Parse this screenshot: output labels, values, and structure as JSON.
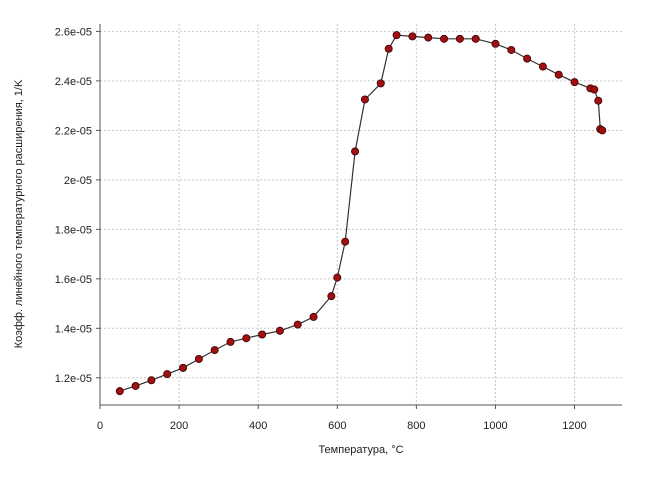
{
  "chart_data": {
    "type": "line",
    "xlabel": "Температура, °C",
    "ylabel": "Коэфф. линейного температурного расширения, 1/K",
    "xlim": [
      0,
      1320
    ],
    "ylim": [
      1.09e-05,
      2.63e-05
    ],
    "x_ticks": [
      0,
      200,
      400,
      600,
      800,
      1000,
      1200
    ],
    "x_tick_labels": [
      "0",
      "200",
      "400",
      "600",
      "800",
      "1000",
      "1200"
    ],
    "y_ticks": [
      1.2e-05,
      1.4e-05,
      1.6e-05,
      1.8e-05,
      2e-05,
      2.2e-05,
      2.4e-05,
      2.6e-05
    ],
    "y_tick_labels": [
      "1.2e-05",
      "1.4e-05",
      "1.6e-05",
      "1.8e-05",
      "2e-05",
      "2.2e-05",
      "2.4e-05",
      "2.6e-05"
    ],
    "grid": true,
    "colors": {
      "line": "#333333",
      "marker": "#a01010",
      "grid": "#c8c8c8"
    },
    "series": [
      {
        "x": [
          50,
          90,
          130,
          170,
          210,
          250,
          290,
          330,
          370,
          410,
          455,
          500,
          540,
          585,
          600,
          620,
          645,
          670,
          710,
          730,
          750,
          790,
          830,
          870,
          910,
          950,
          1000,
          1040,
          1080,
          1120,
          1160,
          1200,
          1240,
          1250,
          1260,
          1265,
          1270
        ],
        "y": [
          1.146e-05,
          1.167e-05,
          1.19e-05,
          1.215e-05,
          1.24e-05,
          1.276e-05,
          1.312e-05,
          1.345e-05,
          1.36e-05,
          1.375e-05,
          1.39e-05,
          1.415e-05,
          1.446e-05,
          1.53e-05,
          1.605e-05,
          1.75e-05,
          2.115e-05,
          2.325e-05,
          2.39e-05,
          2.53e-05,
          2.585e-05,
          2.58e-05,
          2.575e-05,
          2.57e-05,
          2.57e-05,
          2.57e-05,
          2.55e-05,
          2.525e-05,
          2.49e-05,
          2.458e-05,
          2.425e-05,
          2.395e-05,
          2.37e-05,
          2.365e-05,
          2.32e-05,
          2.205e-05,
          2.2e-05
        ]
      }
    ]
  }
}
